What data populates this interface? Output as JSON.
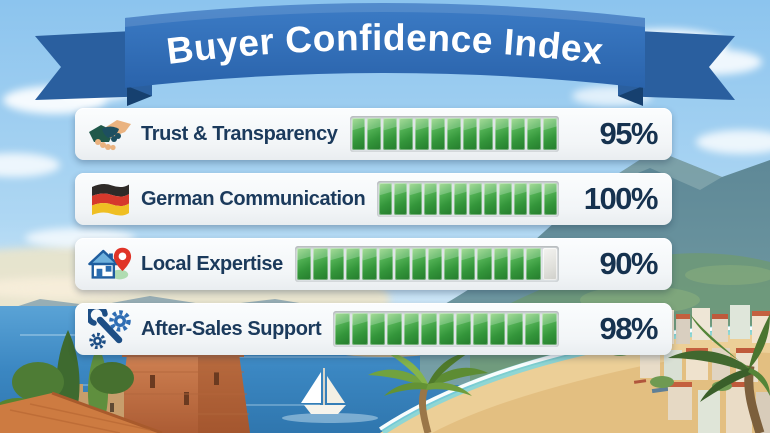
{
  "banner": {
    "title": "Buyer Confidence Index"
  },
  "rows": [
    {
      "label": "Trust & Transparency",
      "value": 95,
      "value_label": "95%",
      "icon": "handshake-icon",
      "bar": {
        "segments_total": 13,
        "segments_filled": 13
      }
    },
    {
      "label": "German Communication",
      "value": 100,
      "value_label": "100%",
      "icon": "german-flag-icon",
      "bar": {
        "segments_total": 12,
        "segments_filled": 12
      }
    },
    {
      "label": "Local Expertise",
      "value": 90,
      "value_label": "90%",
      "icon": "house-location-icon",
      "bar": {
        "segments_total": 16,
        "segments_filled": 15
      }
    },
    {
      "label": "After-Sales Support",
      "value": 98,
      "value_label": "98%",
      "icon": "tools-support-icon",
      "bar": {
        "segments_total": 13,
        "segments_filled": 13
      }
    }
  ],
  "colors": {
    "banner_blue": "#2d66b0",
    "banner_dark": "#1c4a86",
    "bar_green": "#2f8c35",
    "bar_empty": "#d5d6d2",
    "text_navy": "#16324f",
    "card_bg": "#f5f8fa"
  },
  "chart_data": {
    "type": "bar",
    "orientation": "horizontal",
    "title": "Buyer Confidence Index",
    "categories": [
      "Trust & Transparency",
      "German Communication",
      "Local Expertise",
      "After-Sales Support"
    ],
    "values": [
      95,
      100,
      90,
      98
    ],
    "value_labels": [
      "95%",
      "100%",
      "90%",
      "98%"
    ],
    "unit": "%",
    "xlim": [
      0,
      100
    ],
    "grid": false,
    "legend": false
  }
}
